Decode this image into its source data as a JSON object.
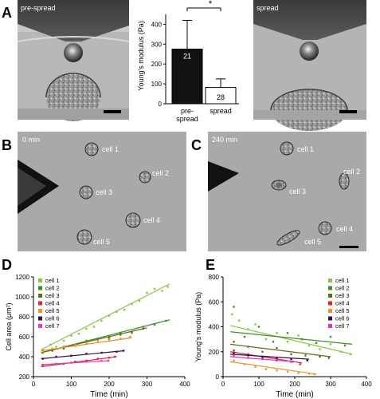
{
  "panel_labels": {
    "a": "A",
    "b": "B",
    "c": "C",
    "d": "D",
    "e": "E"
  },
  "panelA": {
    "left_image_label": "pre-spread",
    "right_image_label": "spread",
    "bar_chart": {
      "ylabel": "Young's modulus (Pa)",
      "yticks": [
        "0",
        "100",
        "200",
        "300",
        "400"
      ],
      "ylim": [
        0,
        450
      ],
      "bars": [
        {
          "category_line1": "pre-",
          "category_line2": "spread",
          "value": 275,
          "error_upper": 420,
          "n_label": "21",
          "color": "#111111"
        },
        {
          "category_line1": "spread",
          "category_line2": "",
          "value": 82,
          "error_upper": 125,
          "n_label": "28",
          "color": "#ffffff"
        }
      ],
      "significance": "*"
    }
  },
  "panelB": {
    "time_label": "0 min",
    "cell_labels": [
      "cell 1",
      "cell 2",
      "cell 3",
      "cell 4",
      "cell 5"
    ]
  },
  "panelC": {
    "time_label": "240 min",
    "cell_labels": [
      "cell 1",
      "cell 2",
      "cell 3",
      "cell 4",
      "cell 5"
    ]
  },
  "legend": {
    "entries": [
      {
        "name": "cell 1",
        "color": "#8bc53f"
      },
      {
        "name": "cell 2",
        "color": "#3c8f2a"
      },
      {
        "name": "cell 3",
        "color": "#5f6e1e"
      },
      {
        "name": "cell 4",
        "color": "#d4282a"
      },
      {
        "name": "cell 5",
        "color": "#f0902a"
      },
      {
        "name": "cell 6",
        "color": "#3a0f46"
      },
      {
        "name": "cell 7",
        "color": "#d83cc4"
      }
    ]
  },
  "chart_data": [
    {
      "type": "scatter",
      "title": "",
      "xlabel": "Time (min)",
      "ylabel": "Cell area (μm²)",
      "xlim": [
        0,
        400
      ],
      "ylim": [
        200,
        1200
      ],
      "xticks": [
        "0",
        "100",
        "200",
        "300",
        "400"
      ],
      "yticks": [
        "200",
        "400",
        "600",
        "800",
        "1000",
        "1200"
      ],
      "grid": false,
      "legend_position": "top-left",
      "series": [
        {
          "name": "cell 1",
          "color": "#8bc53f",
          "fit": [
            [
              20,
              470
            ],
            [
              360,
              1130
            ]
          ],
          "points": [
            [
              25,
              470
            ],
            [
              45,
              520
            ],
            [
              60,
              500
            ],
            [
              80,
              560
            ],
            [
              100,
              610
            ],
            [
              120,
              630
            ],
            [
              140,
              680
            ],
            [
              160,
              700
            ],
            [
              180,
              760
            ],
            [
              200,
              810
            ],
            [
              220,
              850
            ],
            [
              240,
              870
            ],
            [
              260,
              930
            ],
            [
              280,
              960
            ],
            [
              300,
              1040
            ],
            [
              320,
              1080
            ],
            [
              340,
              1060
            ],
            [
              355,
              1100
            ]
          ]
        },
        {
          "name": "cell 2",
          "color": "#3c8f2a",
          "fit": [
            [
              20,
              440
            ],
            [
              360,
              770
            ]
          ],
          "points": [
            [
              25,
              450
            ],
            [
              50,
              470
            ],
            [
              80,
              500
            ],
            [
              110,
              520
            ],
            [
              140,
              560
            ],
            [
              170,
              580
            ],
            [
              200,
              600
            ],
            [
              230,
              640
            ],
            [
              260,
              650
            ],
            [
              290,
              700
            ],
            [
              320,
              720
            ],
            [
              350,
              760
            ]
          ]
        },
        {
          "name": "cell 3",
          "color": "#5f6e1e",
          "fit": [
            [
              20,
              440
            ],
            [
              300,
              690
            ]
          ],
          "points": [
            [
              25,
              440
            ],
            [
              50,
              460
            ],
            [
              80,
              480
            ],
            [
              110,
              510
            ],
            [
              140,
              540
            ],
            [
              170,
              560
            ],
            [
              200,
              590
            ],
            [
              230,
              620
            ],
            [
              260,
              640
            ],
            [
              290,
              680
            ]
          ]
        },
        {
          "name": "cell 4",
          "color": "#d4282a",
          "fit": [
            [
              20,
              300
            ],
            [
              220,
              400
            ]
          ],
          "points": [
            [
              25,
              310
            ],
            [
              50,
              320
            ],
            [
              80,
              330
            ],
            [
              110,
              350
            ],
            [
              140,
              360
            ],
            [
              170,
              380
            ],
            [
              200,
              390
            ],
            [
              215,
              400
            ]
          ]
        },
        {
          "name": "cell 5",
          "color": "#f0902a",
          "fit": [
            [
              20,
              460
            ],
            [
              260,
              590
            ]
          ],
          "points": [
            [
              25,
              450
            ],
            [
              50,
              480
            ],
            [
              80,
              500
            ],
            [
              110,
              520
            ],
            [
              140,
              540
            ],
            [
              170,
              560
            ],
            [
              200,
              570
            ],
            [
              230,
              580
            ],
            [
              255,
              600
            ]
          ]
        },
        {
          "name": "cell 6",
          "color": "#3a0f46",
          "fit": [
            [
              20,
              380
            ],
            [
              240,
              460
            ]
          ],
          "points": [
            [
              25,
              380
            ],
            [
              60,
              400
            ],
            [
              100,
              410
            ],
            [
              140,
              430
            ],
            [
              180,
              440
            ],
            [
              220,
              450
            ],
            [
              238,
              460
            ]
          ]
        },
        {
          "name": "cell 7",
          "color": "#d83cc4",
          "fit": [
            [
              20,
              320
            ],
            [
              200,
              360
            ]
          ],
          "points": [
            [
              25,
              320
            ],
            [
              60,
              330
            ],
            [
              100,
              340
            ],
            [
              140,
              350
            ],
            [
              180,
              360
            ],
            [
              198,
              360
            ]
          ]
        }
      ]
    },
    {
      "type": "scatter",
      "title": "",
      "xlabel": "Time (min)",
      "ylabel": "Young's modulus (Pa)",
      "xlim": [
        0,
        400
      ],
      "ylim": [
        0,
        800
      ],
      "xticks": [
        "0",
        "100",
        "200",
        "300",
        "400"
      ],
      "yticks": [
        "0",
        "200",
        "400",
        "600",
        "800"
      ],
      "grid": false,
      "legend_position": "top-right",
      "series": [
        {
          "name": "cell 1",
          "color": "#8bc53f",
          "fit": [
            [
              20,
              410
            ],
            [
              360,
              180
            ]
          ],
          "points": [
            [
              25,
              500
            ],
            [
              45,
              450
            ],
            [
              70,
              380
            ],
            [
              90,
              420
            ],
            [
              120,
              300
            ],
            [
              150,
              350
            ],
            [
              180,
              280
            ],
            [
              210,
              330
            ],
            [
              240,
              250
            ],
            [
              270,
              220
            ],
            [
              300,
              260
            ],
            [
              330,
              200
            ],
            [
              355,
              180
            ]
          ]
        },
        {
          "name": "cell 2",
          "color": "#3c8f2a",
          "fit": [
            [
              20,
              360
            ],
            [
              360,
              260
            ]
          ],
          "points": [
            [
              30,
              560
            ],
            [
              60,
              320
            ],
            [
              100,
              400
            ],
            [
              140,
              280
            ],
            [
              180,
              350
            ],
            [
              220,
              300
            ],
            [
              260,
              270
            ],
            [
              300,
              320
            ],
            [
              340,
              250
            ]
          ]
        },
        {
          "name": "cell 3",
          "color": "#5f6e1e",
          "fit": [
            [
              20,
              260
            ],
            [
              300,
              160
            ]
          ],
          "points": [
            [
              30,
              280
            ],
            [
              70,
              240
            ],
            [
              110,
              200
            ],
            [
              150,
              230
            ],
            [
              190,
              180
            ],
            [
              230,
              170
            ],
            [
              270,
              160
            ],
            [
              295,
              150
            ]
          ]
        },
        {
          "name": "cell 4",
          "color": "#d4282a",
          "fit": [
            [
              20,
              200
            ],
            [
              220,
              110
            ]
          ],
          "points": [
            [
              30,
              210
            ],
            [
              70,
              180
            ],
            [
              110,
              150
            ],
            [
              150,
              130
            ],
            [
              190,
              120
            ],
            [
              215,
              100
            ]
          ]
        },
        {
          "name": "cell 5",
          "color": "#f0902a",
          "fit": [
            [
              20,
              120
            ],
            [
              260,
              20
            ]
          ],
          "points": [
            [
              30,
              130
            ],
            [
              60,
              100
            ],
            [
              90,
              80
            ],
            [
              120,
              60
            ],
            [
              150,
              50
            ],
            [
              180,
              40
            ],
            [
              210,
              30
            ],
            [
              240,
              25
            ],
            [
              255,
              20
            ]
          ]
        },
        {
          "name": "cell 6",
          "color": "#3a0f46",
          "fit": [
            [
              20,
              180
            ],
            [
              240,
              140
            ]
          ],
          "points": [
            [
              30,
              190
            ],
            [
              70,
              170
            ],
            [
              110,
              160
            ],
            [
              150,
              150
            ],
            [
              190,
              140
            ],
            [
              235,
              130
            ]
          ]
        },
        {
          "name": "cell 7",
          "color": "#d83cc4",
          "fit": [
            [
              20,
              160
            ],
            [
              200,
              120
            ]
          ],
          "points": [
            [
              30,
              170
            ],
            [
              70,
              150
            ],
            [
              110,
              140
            ],
            [
              150,
              130
            ],
            [
              195,
              120
            ]
          ]
        }
      ]
    }
  ]
}
